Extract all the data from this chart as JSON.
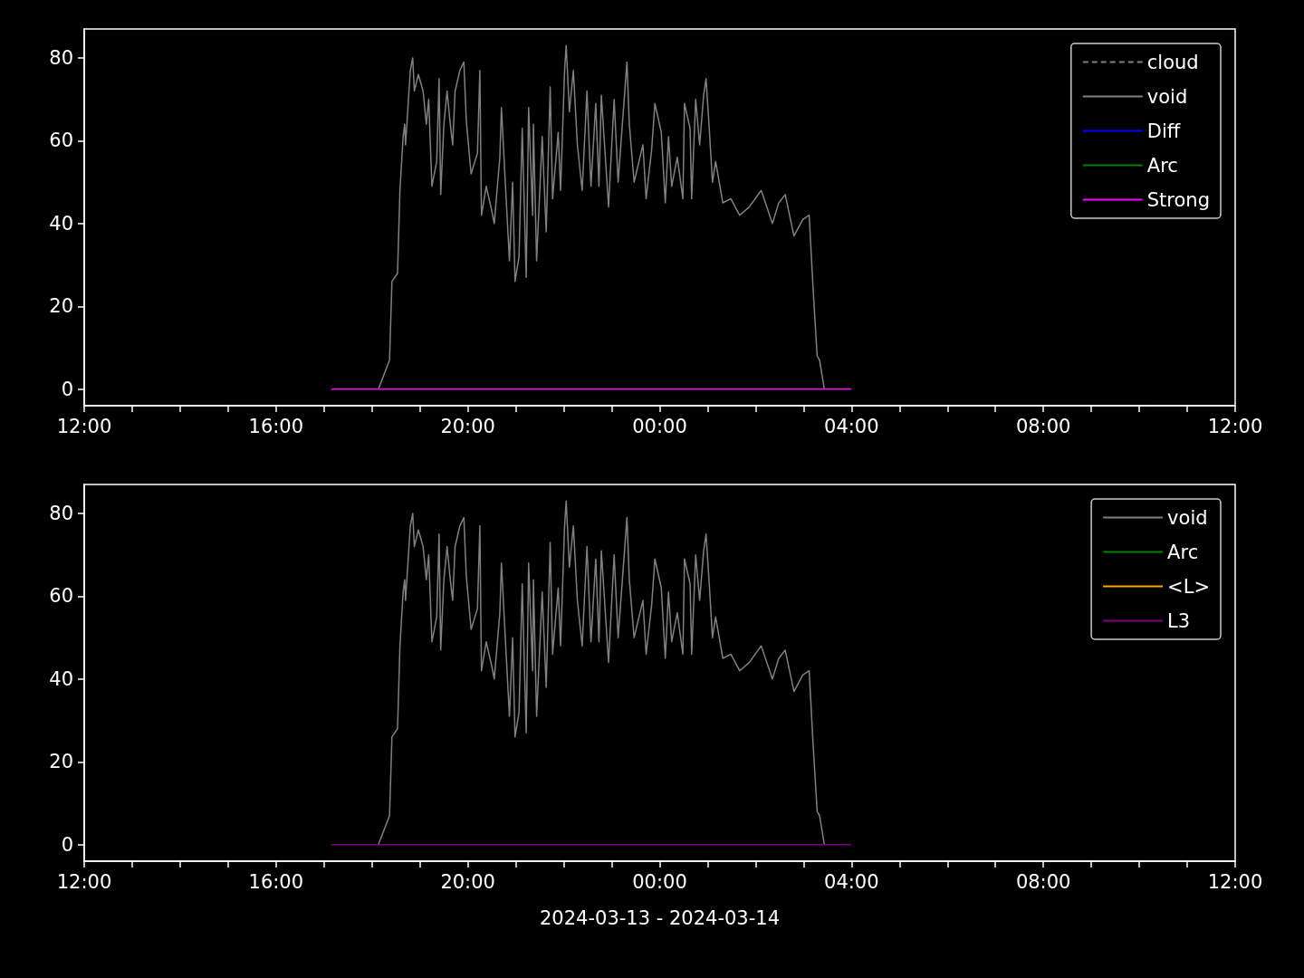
{
  "chart_data": [
    {
      "type": "line",
      "xlim": [
        "2024-03-13T12:00",
        "2024-03-14T12:00"
      ],
      "ylim": [
        -4,
        87
      ],
      "yticks": [
        0,
        20,
        40,
        60,
        80
      ],
      "xticks": [
        {
          "value": "2024-03-13T12:00",
          "label": "12:00"
        },
        {
          "value": "2024-03-13T13:00",
          "label": null
        },
        {
          "value": "2024-03-13T14:00",
          "label": null
        },
        {
          "value": "2024-03-13T15:00",
          "label": null
        },
        {
          "value": "2024-03-13T16:00",
          "label": "16:00"
        },
        {
          "value": "2024-03-13T17:00",
          "label": null
        },
        {
          "value": "2024-03-13T18:00",
          "label": null
        },
        {
          "value": "2024-03-13T19:00",
          "label": null
        },
        {
          "value": "2024-03-13T20:00",
          "label": "20:00"
        },
        {
          "value": "2024-03-13T21:00",
          "label": null
        },
        {
          "value": "2024-03-13T22:00",
          "label": null
        },
        {
          "value": "2024-03-13T23:00",
          "label": null
        },
        {
          "value": "2024-03-14T00:00",
          "label": "00:00"
        },
        {
          "value": "2024-03-14T01:00",
          "label": null
        },
        {
          "value": "2024-03-14T02:00",
          "label": null
        },
        {
          "value": "2024-03-14T03:00",
          "label": null
        },
        {
          "value": "2024-03-14T04:00",
          "label": "04:00"
        },
        {
          "value": "2024-03-14T05:00",
          "label": null
        },
        {
          "value": "2024-03-14T06:00",
          "label": null
        },
        {
          "value": "2024-03-14T07:00",
          "label": null
        },
        {
          "value": "2024-03-14T08:00",
          "label": "08:00"
        },
        {
          "value": "2024-03-14T09:00",
          "label": null
        },
        {
          "value": "2024-03-14T10:00",
          "label": null
        },
        {
          "value": "2024-03-14T11:00",
          "label": null
        },
        {
          "value": "2024-03-14T12:00",
          "label": "12:00"
        }
      ],
      "legend": "top right",
      "series": [
        {
          "name": "cloud",
          "color": "#808080",
          "line_style": "dashed"
        },
        {
          "name": "void",
          "color": "#808080",
          "x": [
            "2024-03-13T18:08",
            "2024-03-13T18:22",
            "2024-03-13T18:25",
            "2024-03-13T18:32",
            "2024-03-13T18:35",
            "2024-03-13T18:39",
            "2024-03-13T18:41",
            "2024-03-13T18:42",
            "2024-03-13T18:48",
            "2024-03-13T18:51",
            "2024-03-13T18:53",
            "2024-03-13T18:58",
            "2024-03-13T19:04",
            "2024-03-13T19:08",
            "2024-03-13T19:11",
            "2024-03-13T19:15",
            "2024-03-13T19:21",
            "2024-03-13T19:24",
            "2024-03-13T19:26",
            "2024-03-13T19:30",
            "2024-03-13T19:34",
            "2024-03-13T19:38",
            "2024-03-13T19:41",
            "2024-03-13T19:44",
            "2024-03-13T19:50",
            "2024-03-13T19:55",
            "2024-03-13T19:58",
            "2024-03-13T20:04",
            "2024-03-13T20:12",
            "2024-03-13T20:15",
            "2024-03-13T20:17",
            "2024-03-13T20:23",
            "2024-03-13T20:30",
            "2024-03-13T20:33",
            "2024-03-13T20:40",
            "2024-03-13T20:42",
            "2024-03-13T20:46",
            "2024-03-13T20:52",
            "2024-03-13T20:56",
            "2024-03-13T20:59",
            "2024-03-13T21:04",
            "2024-03-13T21:08",
            "2024-03-13T21:13",
            "2024-03-13T21:16",
            "2024-03-13T21:21",
            "2024-03-13T21:22",
            "2024-03-13T21:26",
            "2024-03-13T21:33",
            "2024-03-13T21:38",
            "2024-03-13T21:43",
            "2024-03-13T21:46",
            "2024-03-13T21:53",
            "2024-03-13T21:56",
            "2024-03-13T22:01",
            "2024-03-13T22:03",
            "2024-03-13T22:07",
            "2024-03-13T22:12",
            "2024-03-13T22:17",
            "2024-03-13T22:23",
            "2024-03-13T22:29",
            "2024-03-13T22:34",
            "2024-03-13T22:40",
            "2024-03-13T22:44",
            "2024-03-13T22:47",
            "2024-03-13T22:56",
            "2024-03-13T23:03",
            "2024-03-13T23:08",
            "2024-03-13T23:19",
            "2024-03-13T23:22",
            "2024-03-13T23:28",
            "2024-03-13T23:39",
            "2024-03-13T23:43",
            "2024-03-13T23:50",
            "2024-03-13T23:54",
            "2024-03-14T00:02",
            "2024-03-14T00:07",
            "2024-03-14T00:11",
            "2024-03-14T00:15",
            "2024-03-14T00:22",
            "2024-03-14T00:29",
            "2024-03-14T00:31",
            "2024-03-14T00:38",
            "2024-03-14T00:40",
            "2024-03-14T00:45",
            "2024-03-14T00:50",
            "2024-03-14T00:55",
            "2024-03-14T00:58",
            "2024-03-14T01:02",
            "2024-03-14T01:06",
            "2024-03-14T01:10",
            "2024-03-14T01:19",
            "2024-03-14T01:29",
            "2024-03-14T01:40",
            "2024-03-14T01:52",
            "2024-03-14T02:07",
            "2024-03-14T02:21",
            "2024-03-14T02:29",
            "2024-03-14T02:37",
            "2024-03-14T02:48",
            "2024-03-14T02:59",
            "2024-03-14T03:07",
            "2024-03-14T03:12",
            "2024-03-14T03:17",
            "2024-03-14T03:20",
            "2024-03-14T03:26"
          ],
          "values": [
            0,
            7,
            26,
            28,
            48,
            61,
            64,
            59,
            77,
            80,
            72,
            76,
            72,
            64,
            70,
            49,
            55,
            75,
            47,
            64,
            72,
            64,
            59,
            72,
            77,
            79,
            65,
            52,
            57,
            77,
            42,
            49,
            43,
            40,
            56,
            68,
            53,
            31,
            50,
            26,
            32,
            63,
            27,
            68,
            42,
            64,
            31,
            61,
            38,
            73,
            46,
            62,
            48,
            77,
            83,
            67,
            77,
            59,
            48,
            72,
            49,
            69,
            49,
            71,
            44,
            70,
            50,
            79,
            64,
            50,
            59,
            46,
            58,
            69,
            62,
            45,
            61,
            49,
            56,
            46,
            69,
            63,
            46,
            70,
            59,
            71,
            75,
            63,
            50,
            55,
            45,
            46,
            42,
            44,
            48,
            40,
            45,
            47,
            37,
            41,
            42,
            24,
            8,
            7,
            0
          ]
        },
        {
          "name": "Diff",
          "color": "#0000ff"
        },
        {
          "name": "Arc",
          "color": "#008000"
        },
        {
          "name": "Strong",
          "color": "#ff00ff",
          "x": [
            "2024-03-13T17:09",
            "2024-03-14T04:00"
          ],
          "values": [
            0,
            0
          ]
        }
      ]
    },
    {
      "type": "line",
      "xlabel": "2024-03-13 - 2024-03-14",
      "xlim": [
        "2024-03-13T12:00",
        "2024-03-14T12:00"
      ],
      "ylim": [
        -4,
        87
      ],
      "yticks": [
        0,
        20,
        40,
        60,
        80
      ],
      "xticks": [
        {
          "value": "2024-03-13T12:00",
          "label": "12:00"
        },
        {
          "value": "2024-03-13T13:00",
          "label": null
        },
        {
          "value": "2024-03-13T14:00",
          "label": null
        },
        {
          "value": "2024-03-13T15:00",
          "label": null
        },
        {
          "value": "2024-03-13T16:00",
          "label": "16:00"
        },
        {
          "value": "2024-03-13T17:00",
          "label": null
        },
        {
          "value": "2024-03-13T18:00",
          "label": null
        },
        {
          "value": "2024-03-13T19:00",
          "label": null
        },
        {
          "value": "2024-03-13T20:00",
          "label": "20:00"
        },
        {
          "value": "2024-03-13T21:00",
          "label": null
        },
        {
          "value": "2024-03-13T22:00",
          "label": null
        },
        {
          "value": "2024-03-13T23:00",
          "label": null
        },
        {
          "value": "2024-03-14T00:00",
          "label": "00:00"
        },
        {
          "value": "2024-03-14T01:00",
          "label": null
        },
        {
          "value": "2024-03-14T02:00",
          "label": null
        },
        {
          "value": "2024-03-14T03:00",
          "label": null
        },
        {
          "value": "2024-03-14T04:00",
          "label": "04:00"
        },
        {
          "value": "2024-03-14T05:00",
          "label": null
        },
        {
          "value": "2024-03-14T06:00",
          "label": null
        },
        {
          "value": "2024-03-14T07:00",
          "label": null
        },
        {
          "value": "2024-03-14T08:00",
          "label": "08:00"
        },
        {
          "value": "2024-03-14T09:00",
          "label": null
        },
        {
          "value": "2024-03-14T10:00",
          "label": null
        },
        {
          "value": "2024-03-14T11:00",
          "label": null
        },
        {
          "value": "2024-03-14T12:00",
          "label": "12:00"
        }
      ],
      "legend": "top right",
      "series": [
        {
          "name": "void",
          "color": "#808080",
          "x": [
            "2024-03-13T18:08",
            "2024-03-13T18:22",
            "2024-03-13T18:25",
            "2024-03-13T18:32",
            "2024-03-13T18:35",
            "2024-03-13T18:39",
            "2024-03-13T18:41",
            "2024-03-13T18:42",
            "2024-03-13T18:48",
            "2024-03-13T18:51",
            "2024-03-13T18:53",
            "2024-03-13T18:58",
            "2024-03-13T19:04",
            "2024-03-13T19:08",
            "2024-03-13T19:11",
            "2024-03-13T19:15",
            "2024-03-13T19:21",
            "2024-03-13T19:24",
            "2024-03-13T19:26",
            "2024-03-13T19:30",
            "2024-03-13T19:34",
            "2024-03-13T19:38",
            "2024-03-13T19:41",
            "2024-03-13T19:44",
            "2024-03-13T19:50",
            "2024-03-13T19:55",
            "2024-03-13T19:58",
            "2024-03-13T20:04",
            "2024-03-13T20:12",
            "2024-03-13T20:15",
            "2024-03-13T20:17",
            "2024-03-13T20:23",
            "2024-03-13T20:30",
            "2024-03-13T20:33",
            "2024-03-13T20:40",
            "2024-03-13T20:42",
            "2024-03-13T20:46",
            "2024-03-13T20:52",
            "2024-03-13T20:56",
            "2024-03-13T20:59",
            "2024-03-13T21:04",
            "2024-03-13T21:08",
            "2024-03-13T21:13",
            "2024-03-13T21:16",
            "2024-03-13T21:21",
            "2024-03-13T21:22",
            "2024-03-13T21:26",
            "2024-03-13T21:33",
            "2024-03-13T21:38",
            "2024-03-13T21:43",
            "2024-03-13T21:46",
            "2024-03-13T21:53",
            "2024-03-13T21:56",
            "2024-03-13T22:01",
            "2024-03-13T22:03",
            "2024-03-13T22:07",
            "2024-03-13T22:12",
            "2024-03-13T22:17",
            "2024-03-13T22:23",
            "2024-03-13T22:29",
            "2024-03-13T22:34",
            "2024-03-13T22:40",
            "2024-03-13T22:44",
            "2024-03-13T22:47",
            "2024-03-13T22:56",
            "2024-03-13T23:03",
            "2024-03-13T23:08",
            "2024-03-13T23:19",
            "2024-03-13T23:22",
            "2024-03-13T23:28",
            "2024-03-13T23:39",
            "2024-03-13T23:43",
            "2024-03-13T23:50",
            "2024-03-13T23:54",
            "2024-03-14T00:02",
            "2024-03-14T00:07",
            "2024-03-14T00:11",
            "2024-03-14T00:15",
            "2024-03-14T00:22",
            "2024-03-14T00:29",
            "2024-03-14T00:31",
            "2024-03-14T00:38",
            "2024-03-14T00:40",
            "2024-03-14T00:45",
            "2024-03-14T00:50",
            "2024-03-14T00:55",
            "2024-03-14T00:58",
            "2024-03-14T01:02",
            "2024-03-14T01:06",
            "2024-03-14T01:10",
            "2024-03-14T01:19",
            "2024-03-14T01:29",
            "2024-03-14T01:40",
            "2024-03-14T01:52",
            "2024-03-14T02:07",
            "2024-03-14T02:21",
            "2024-03-14T02:29",
            "2024-03-14T02:37",
            "2024-03-14T02:48",
            "2024-03-14T02:59",
            "2024-03-14T03:07",
            "2024-03-14T03:12",
            "2024-03-14T03:17",
            "2024-03-14T03:20",
            "2024-03-14T03:26"
          ],
          "values": [
            0,
            7,
            26,
            28,
            48,
            61,
            64,
            59,
            77,
            80,
            72,
            76,
            72,
            64,
            70,
            49,
            55,
            75,
            47,
            64,
            72,
            64,
            59,
            72,
            77,
            79,
            65,
            52,
            57,
            77,
            42,
            49,
            43,
            40,
            56,
            68,
            53,
            31,
            50,
            26,
            32,
            63,
            27,
            68,
            42,
            64,
            31,
            61,
            38,
            73,
            46,
            62,
            48,
            77,
            83,
            67,
            77,
            59,
            48,
            72,
            49,
            69,
            49,
            71,
            44,
            70,
            50,
            79,
            64,
            50,
            59,
            46,
            58,
            69,
            62,
            45,
            61,
            49,
            56,
            46,
            69,
            63,
            46,
            70,
            59,
            71,
            75,
            63,
            50,
            55,
            45,
            46,
            42,
            44,
            48,
            40,
            45,
            47,
            37,
            41,
            42,
            24,
            8,
            7,
            0
          ]
        },
        {
          "name": "Arc",
          "color": "#008000"
        },
        {
          "name": "<L>",
          "color": "#ffa500"
        },
        {
          "name": "L3",
          "color": "#800080",
          "x": [
            "2024-03-13T17:09",
            "2024-03-14T04:00"
          ],
          "values": [
            0,
            0
          ]
        }
      ]
    }
  ]
}
